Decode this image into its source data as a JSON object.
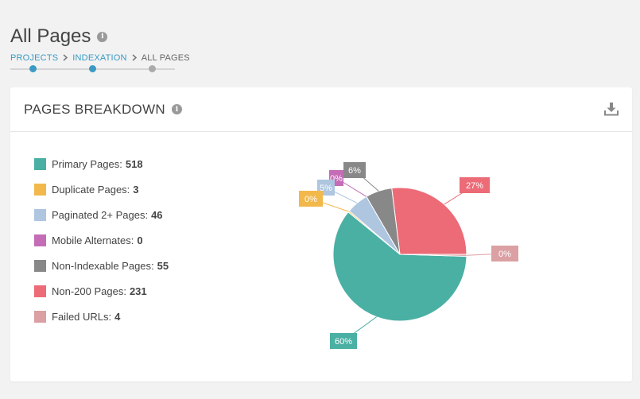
{
  "page": {
    "title": "All Pages"
  },
  "breadcrumb": {
    "projects": "PROJECTS",
    "indexation": "INDEXATION",
    "current": "ALL PAGES"
  },
  "progress": {
    "steps": 3,
    "current_step": 3
  },
  "colors": {
    "accent": "#3a9ac4",
    "primary": "#4ab0a4",
    "duplicate": "#f2b84b",
    "paginated": "#aec6e0",
    "mobile": "#c46db6",
    "nonindexable": "#888888",
    "non200": "#ec6b77",
    "failed": "#dba0a3"
  },
  "card": {
    "title": "PAGES BREAKDOWN",
    "download_icon": "download-icon"
  },
  "legend": [
    {
      "label": "Primary Pages:",
      "value": "518"
    },
    {
      "label": "Duplicate Pages:",
      "value": "3"
    },
    {
      "label": "Paginated 2+ Pages:",
      "value": "46"
    },
    {
      "label": "Mobile Alternates:",
      "value": "0"
    },
    {
      "label": "Non-Indexable Pages:",
      "value": "55"
    },
    {
      "label": "Non-200 Pages:",
      "value": "231"
    },
    {
      "label": "Failed URLs:",
      "value": "4"
    }
  ],
  "chart_data": {
    "type": "pie",
    "categories": [
      "Primary Pages",
      "Duplicate Pages",
      "Paginated 2+ Pages",
      "Mobile Alternates",
      "Non-Indexable Pages",
      "Non-200 Pages",
      "Failed URLs"
    ],
    "values": [
      518,
      3,
      46,
      0,
      55,
      231,
      4
    ],
    "labels": [
      "60%",
      "0%",
      "5%",
      "0%",
      "6%",
      "27%",
      "0%"
    ],
    "colors": [
      "#4ab0a4",
      "#f2b84b",
      "#aec6e0",
      "#c46db6",
      "#888888",
      "#ec6b77",
      "#dba0a3"
    ]
  }
}
